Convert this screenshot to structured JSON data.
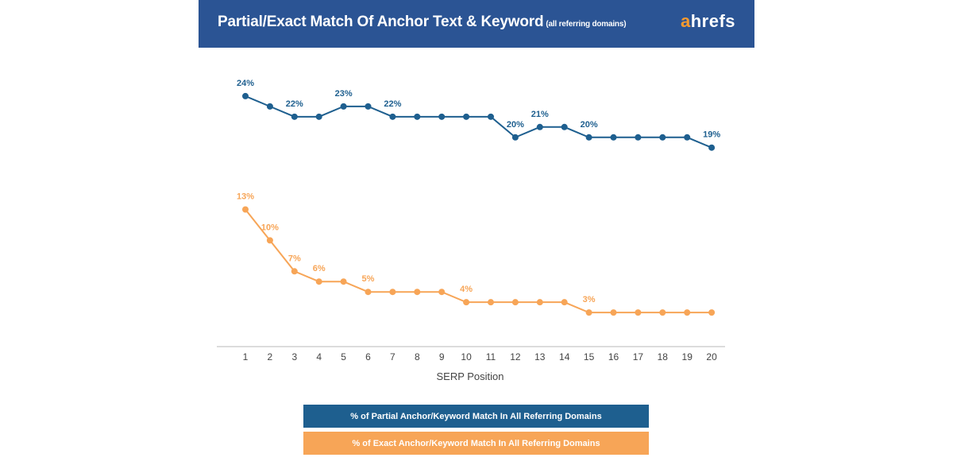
{
  "header": {
    "title": "Partial/Exact Match Of Anchor Text & Keyword",
    "subtitle": "(all referring domains)",
    "logo_first": "a",
    "logo_rest": "hrefs"
  },
  "colors": {
    "header_bg": "#2b5494",
    "partial": "#1e5f8f",
    "exact": "#f7a557",
    "logo_accent": "#f79a2e"
  },
  "chart_data": {
    "type": "line",
    "title": "Partial/Exact Match Of Anchor Text & Keyword (all referring domains)",
    "xlabel": "SERP Position",
    "ylabel": "",
    "x": [
      1,
      2,
      3,
      4,
      5,
      6,
      7,
      8,
      9,
      10,
      11,
      12,
      13,
      14,
      15,
      16,
      17,
      18,
      19,
      20
    ],
    "ylim": [
      0,
      26
    ],
    "grid": false,
    "legend_position": "bottom",
    "series": [
      {
        "name": "% of Partial Anchor/Keyword Match In All Referring Domains",
        "color": "#1e5f8f",
        "values": [
          24,
          23,
          22,
          22,
          23,
          23,
          22,
          22,
          22,
          22,
          22,
          20,
          21,
          21,
          20,
          20,
          20,
          20,
          20,
          19
        ],
        "labels": [
          {
            "index": 0,
            "text": "24%"
          },
          {
            "index": 2,
            "text": "22%"
          },
          {
            "index": 4,
            "text": "23%"
          },
          {
            "index": 6,
            "text": "22%"
          },
          {
            "index": 11,
            "text": "20%"
          },
          {
            "index": 12,
            "text": "21%"
          },
          {
            "index": 14,
            "text": "20%"
          },
          {
            "index": 19,
            "text": "19%"
          }
        ]
      },
      {
        "name": "% of Exact Anchor/Keyword Match In All Referring Domains",
        "color": "#f7a557",
        "values": [
          13,
          10,
          7,
          6,
          6,
          5,
          5,
          5,
          5,
          4,
          4,
          4,
          4,
          4,
          3,
          3,
          3,
          3,
          3,
          3
        ],
        "labels": [
          {
            "index": 0,
            "text": "13%"
          },
          {
            "index": 1,
            "text": "10%"
          },
          {
            "index": 2,
            "text": "7%"
          },
          {
            "index": 3,
            "text": "6%"
          },
          {
            "index": 5,
            "text": "5%"
          },
          {
            "index": 9,
            "text": "4%"
          },
          {
            "index": 14,
            "text": "3%"
          }
        ]
      }
    ]
  }
}
